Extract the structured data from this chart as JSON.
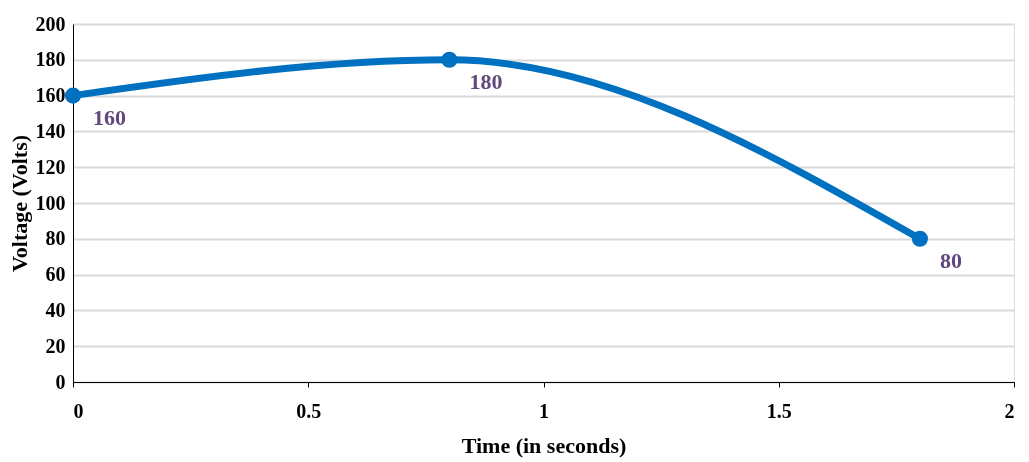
{
  "chart_data": {
    "type": "line",
    "xlabel": "Time (in seconds)",
    "ylabel": "Voltage  (Volts)",
    "x": [
      0,
      0.8,
      1.8
    ],
    "series": [
      {
        "color": "#0070c0",
        "values": [
          160,
          180,
          80
        ]
      }
    ],
    "xlim": [
      0,
      2
    ],
    "xticks": [
      0,
      0.5,
      1,
      1.5,
      2
    ],
    "ylim": [
      0,
      200
    ],
    "yticks": [
      0,
      20,
      40,
      60,
      80,
      100,
      120,
      140,
      160,
      180,
      200
    ],
    "grid": "y",
    "marker": "circle",
    "line_style": "solid",
    "data_labels": true
  }
}
